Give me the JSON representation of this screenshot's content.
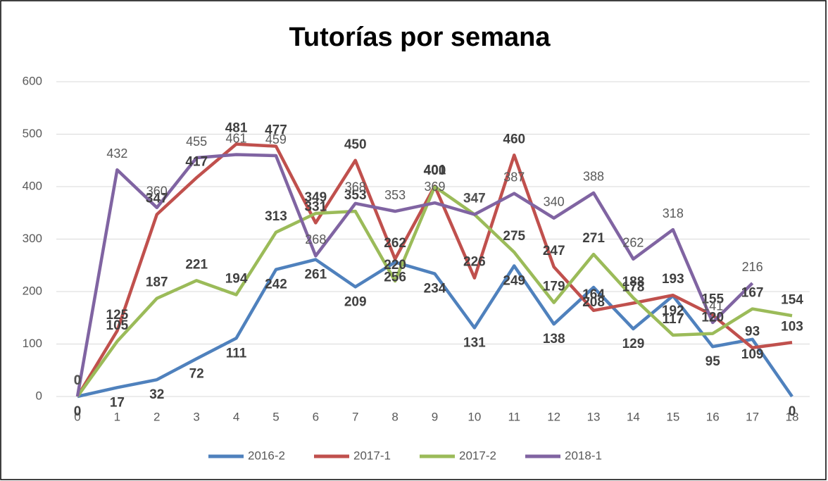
{
  "chart_data": {
    "type": "line",
    "title": "Tutorías por semana",
    "x": [
      0,
      1,
      2,
      3,
      4,
      5,
      6,
      7,
      8,
      9,
      10,
      11,
      12,
      13,
      14,
      15,
      16,
      17,
      18
    ],
    "xlim": [
      0,
      18
    ],
    "xticks": [
      0,
      1,
      2,
      3,
      4,
      5,
      6,
      7,
      8,
      9,
      10,
      11,
      12,
      13,
      14,
      15,
      16,
      17,
      18
    ],
    "ylim": [
      0,
      600
    ],
    "yticks": [
      0,
      100,
      200,
      300,
      400,
      500,
      600
    ],
    "grid": true,
    "legend": "bottom",
    "series": [
      {
        "name": "2016-2",
        "color": "#4f81bd",
        "values": [
          0,
          17,
          32,
          72,
          111,
          242,
          261,
          209,
          256,
          234,
          131,
          249,
          138,
          208,
          129,
          192,
          95,
          109,
          0
        ]
      },
      {
        "name": "2017-1",
        "color": "#c0504d",
        "values": [
          0,
          125,
          347,
          417,
          481,
          477,
          331,
          450,
          262,
          401,
          226,
          460,
          247,
          164,
          178,
          193,
          155,
          93,
          103
        ]
      },
      {
        "name": "2017-2",
        "color": "#9bbb59",
        "values": [
          0,
          105,
          187,
          221,
          194,
          313,
          349,
          353,
          220,
          400,
          347,
          275,
          179,
          271,
          188,
          117,
          120,
          167,
          154
        ]
      },
      {
        "name": "2018-1",
        "color": "#8064a2",
        "values": [
          0,
          432,
          360,
          455,
          461,
          459,
          268,
          368,
          353,
          369,
          347,
          387,
          340,
          388,
          262,
          318,
          141,
          216,
          null
        ]
      }
    ]
  }
}
